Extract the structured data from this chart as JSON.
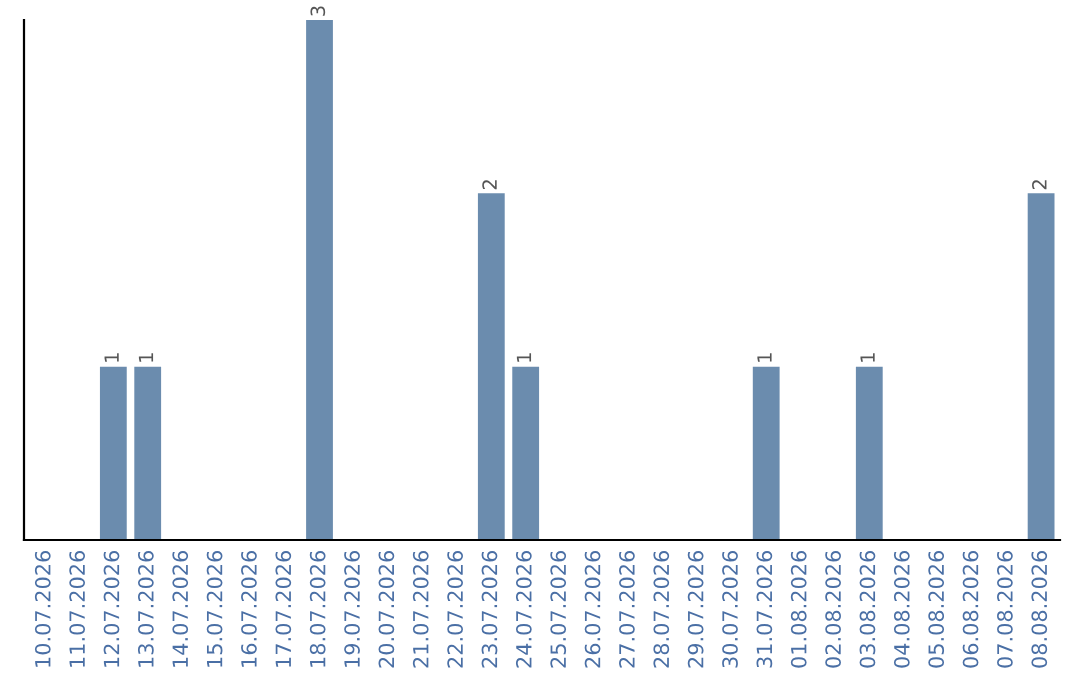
{
  "chart_data": {
    "type": "bar",
    "categories": [
      "10.07.2026",
      "11.07.2026",
      "12.07.2026",
      "13.07.2026",
      "14.07.2026",
      "15.07.2026",
      "16.07.2026",
      "17.07.2026",
      "18.07.2026",
      "19.07.2026",
      "20.07.2026",
      "21.07.2026",
      "22.07.2026",
      "23.07.2026",
      "24.07.2026",
      "25.07.2026",
      "26.07.2026",
      "27.07.2026",
      "28.07.2026",
      "29.07.2026",
      "30.07.2026",
      "31.07.2026",
      "01.08.2026",
      "02.08.2026",
      "03.08.2026",
      "04.08.2026",
      "05.08.2026",
      "06.08.2026",
      "07.08.2026",
      "08.08.2026"
    ],
    "values": [
      0,
      0,
      1,
      1,
      0,
      0,
      0,
      0,
      3,
      0,
      0,
      0,
      0,
      2,
      1,
      0,
      0,
      0,
      0,
      0,
      0,
      1,
      0,
      0,
      1,
      0,
      0,
      0,
      0,
      2
    ],
    "value_labels": [
      null,
      null,
      "1",
      "1",
      null,
      null,
      null,
      null,
      "3",
      null,
      null,
      null,
      null,
      "2",
      "1",
      null,
      null,
      null,
      null,
      null,
      null,
      "1",
      null,
      null,
      "1",
      null,
      null,
      null,
      null,
      "2"
    ],
    "color": "#6b8cae",
    "grid": false,
    "tick_labels": "x"
  }
}
